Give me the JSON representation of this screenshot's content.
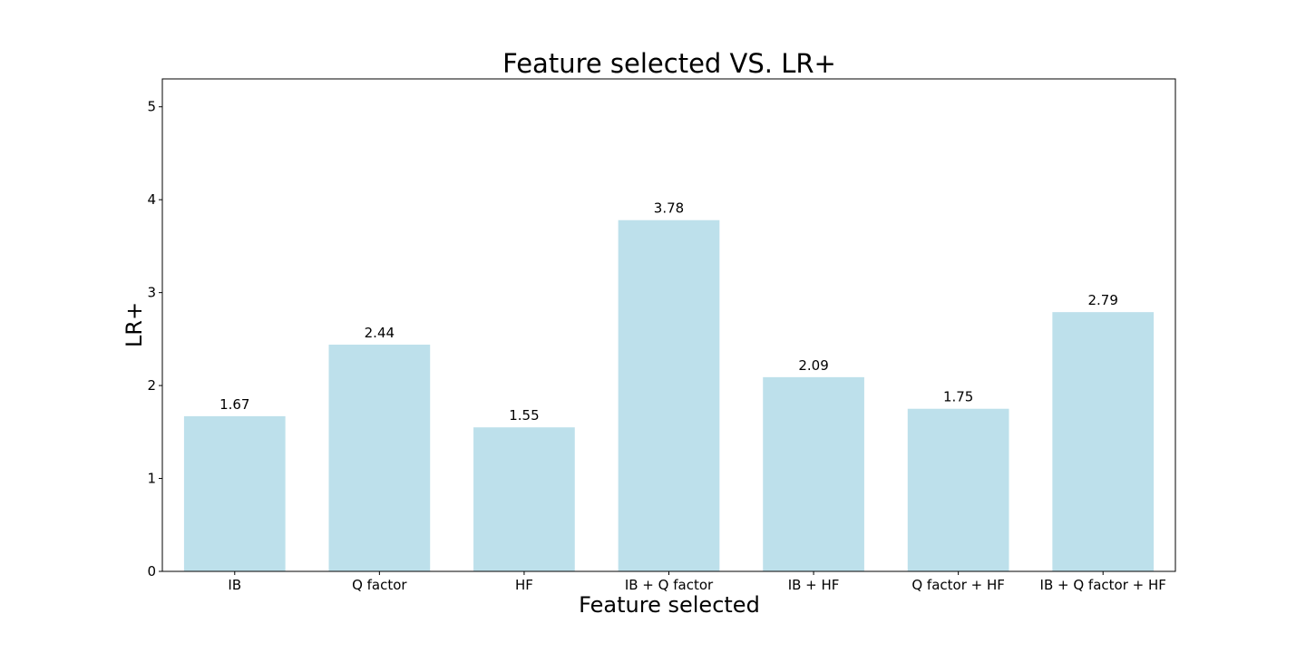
{
  "chart_data": {
    "type": "bar",
    "title": "Feature selected VS. LR+",
    "xlabel": "Feature selected",
    "ylabel": "LR+",
    "categories": [
      "IB",
      "Q factor",
      "HF",
      "IB + Q factor",
      "IB + HF",
      "Q factor + HF",
      "IB + Q factor + HF"
    ],
    "values": [
      1.67,
      2.44,
      1.55,
      3.78,
      2.09,
      1.75,
      2.79
    ],
    "data_labels": [
      "1.67",
      "2.44",
      "1.55",
      "3.78",
      "2.09",
      "1.75",
      "2.79"
    ],
    "ylim": [
      0,
      5.3
    ],
    "yticks": [
      0,
      1,
      2,
      3,
      4,
      5
    ],
    "bar_color": "#add8e6",
    "bar_opacity": 0.8,
    "grid": false,
    "legend": "none"
  }
}
